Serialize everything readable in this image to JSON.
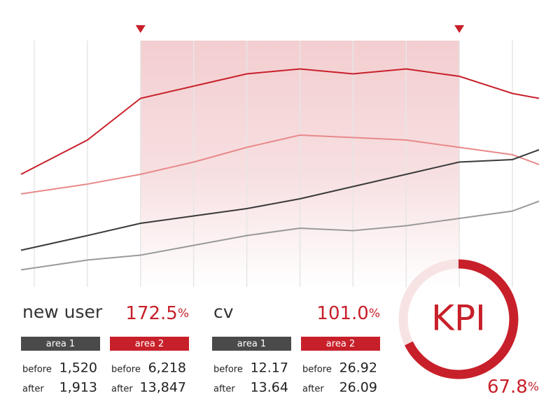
{
  "chart_data": {
    "type": "line",
    "x": [
      -0.25,
      1,
      2,
      3,
      4,
      5,
      6,
      7,
      8,
      9,
      9.5
    ],
    "xlim": [
      -0.25,
      9.5
    ],
    "ylim": [
      0,
      100
    ],
    "xticks": [
      0,
      1,
      2,
      3,
      4,
      5,
      6,
      7,
      8,
      9
    ],
    "grid": true,
    "highlight": [
      2,
      8
    ],
    "highlight_color": "#c8202a",
    "series": [
      {
        "color": "#c8202a",
        "values": [
          46,
          60,
          77,
          82,
          87,
          89,
          87,
          89,
          86,
          79,
          77
        ]
      },
      {
        "color": "#e8898a",
        "values": [
          38,
          42,
          46,
          51,
          57,
          62,
          61,
          60,
          57,
          54,
          50
        ]
      },
      {
        "color": "#3a3a3a",
        "values": [
          15,
          21,
          26,
          29,
          32,
          36,
          41,
          46,
          51,
          52,
          56
        ]
      },
      {
        "color": "#9a9a9a",
        "values": [
          7,
          11,
          13,
          17,
          21,
          24,
          23,
          25,
          28,
          31,
          35
        ]
      }
    ]
  },
  "panels": [
    {
      "title": "new user",
      "rate": "172.5",
      "rate_unit": "%",
      "columns": [
        {
          "label": "area 1",
          "color": "#4a4a4a",
          "rows": [
            [
              "before",
              "1,520"
            ],
            [
              "after",
              "1,913"
            ]
          ]
        },
        {
          "label": "area 2",
          "color": "#c8202a",
          "rows": [
            [
              "before",
              "6,218"
            ],
            [
              "after",
              "13,847"
            ]
          ]
        }
      ]
    },
    {
      "title": "cv",
      "rate": "101.0",
      "rate_unit": "%",
      "columns": [
        {
          "label": "area 1",
          "color": "#4a4a4a",
          "rows": [
            [
              "before",
              "12.17"
            ],
            [
              "after",
              "13.64"
            ]
          ]
        },
        {
          "label": "area 2",
          "color": "#c8202a",
          "rows": [
            [
              "before",
              "26.92"
            ],
            [
              "after",
              "26.09"
            ]
          ]
        }
      ]
    }
  ],
  "kpi": {
    "label": "KPI",
    "value": 67.8,
    "unit": "%",
    "color": "#c8202a",
    "track_color": "#f7e3e3"
  }
}
